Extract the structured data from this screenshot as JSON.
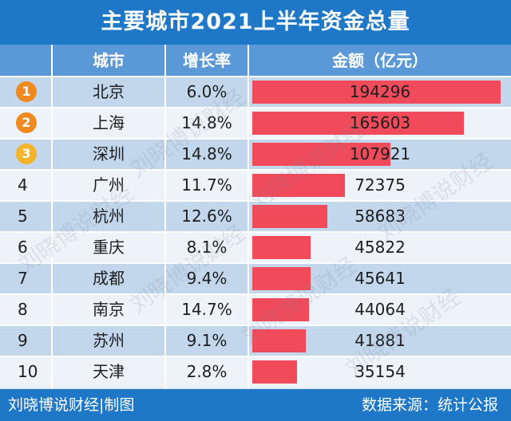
{
  "title": "主要城市2021上半年资金总量",
  "headers": {
    "city": "城市",
    "growth": "增长率",
    "amount": "金额（亿元）"
  },
  "footer": {
    "left": "刘晓博说财经|制图",
    "right": "数据来源：统计公报"
  },
  "watermark": "刘晓博说财经",
  "medal_colors": [
    "#f08a1e",
    "#f08a1e",
    "#f5b52a"
  ],
  "bar_color": "#f04a5b",
  "chart_data": {
    "type": "bar",
    "title": "主要城市2021上半年资金总量",
    "xlabel": "",
    "ylabel": "金额（亿元）",
    "xlim": [
      0,
      200000
    ],
    "ranks": [
      "1",
      "2",
      "3",
      "4",
      "5",
      "6",
      "7",
      "8",
      "9",
      "10"
    ],
    "categories": [
      "北京",
      "上海",
      "深圳",
      "广州",
      "杭州",
      "重庆",
      "成都",
      "南京",
      "苏州",
      "天津"
    ],
    "growth": [
      "6.0%",
      "14.8%",
      "14.8%",
      "11.7%",
      "12.6%",
      "8.1%",
      "9.4%",
      "14.7%",
      "9.1%",
      "2.8%"
    ],
    "values": [
      194296,
      165603,
      107921,
      72375,
      58683,
      45822,
      45641,
      44064,
      41881,
      35154
    ]
  }
}
